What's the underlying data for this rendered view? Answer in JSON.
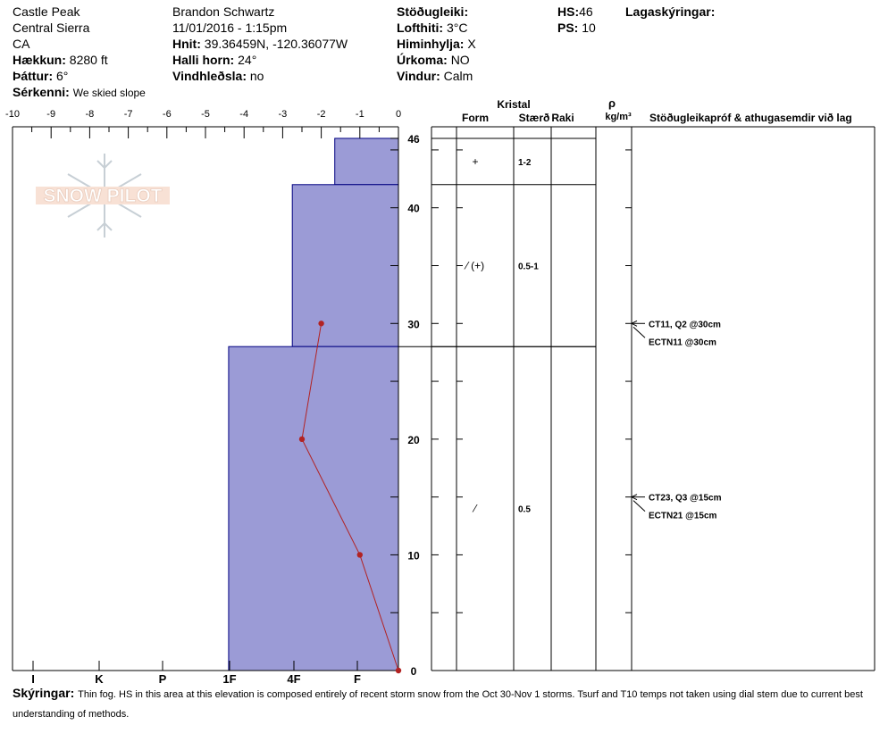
{
  "header": {
    "location": "Castle Peak",
    "range": "Central Sierra",
    "state": "CA",
    "elevation_label": "Hækkun:",
    "elevation_value": "8280 ft",
    "aspect_label": "Þáttur:",
    "aspect_value": "6°",
    "feature_label": "Sérkenni:",
    "feature_value": "We skied slope",
    "observer": "Brandon Schwartz",
    "datetime": "11/01/2016 - 1:15pm",
    "coords_label": "Hnit:",
    "coords_value": "39.36459N, -120.36077W",
    "slope_label": "Halli horn:",
    "slope_value": "24°",
    "wind_loading_label": "Vindhleðsla:",
    "wind_loading_value": "no",
    "stability_label": "Stöðugleiki:",
    "air_temp_label": "Lofthiti:",
    "air_temp_value": "3°C",
    "sky_label": "Himinhylja:",
    "sky_value": "X",
    "precip_label": "Úrkoma:",
    "precip_value": "NO",
    "wind_label": "Vindur:",
    "wind_value": "Calm",
    "hs_label": "HS:",
    "hs_value": "46",
    "ps_label": "PS:",
    "ps_value": "10",
    "layer_notes_label": "Lagaskýringar:"
  },
  "watermark": "SNOW PILOT",
  "table_headers": {
    "crystal": "Kristal",
    "form": "Form",
    "size": "Stærð",
    "moisture": "Raki",
    "rho": "ρ",
    "density_unit": "kg/m³",
    "stability_tests": "Stöðugleikapróf & athugasemdir við lag"
  },
  "chart_data": {
    "type": "snow_profile",
    "temp_axis": {
      "ticks": [
        "-10",
        "-9",
        "-8",
        "-7",
        "-6",
        "-5",
        "-4",
        "-3",
        "-2",
        "-1",
        "0"
      ],
      "range": [
        -10,
        0
      ]
    },
    "hardness_axis": {
      "ticks": [
        "I",
        "K",
        "P",
        "1F",
        "4F",
        "F"
      ]
    },
    "depth_axis": {
      "ticks": [
        "46",
        "40",
        "30",
        "20",
        "10",
        "0"
      ],
      "range": [
        0,
        46
      ]
    },
    "layers": [
      {
        "top": 46,
        "bottom": 42,
        "hardness_temp_equiv": -1.65,
        "form": "+",
        "size": "1-2"
      },
      {
        "top": 42,
        "bottom": 28,
        "hardness_temp_equiv": -2.75,
        "form": "⁄ (+)",
        "size": "0.5-1"
      },
      {
        "top": 28,
        "bottom": 0,
        "hardness_temp_equiv": -4.4,
        "form": "⁄",
        "size": "0.5"
      }
    ],
    "temperature_profile": [
      {
        "depth": 30,
        "temp": -2.0
      },
      {
        "depth": 20,
        "temp": -2.5
      },
      {
        "depth": 10,
        "temp": -1.0
      },
      {
        "depth": 0,
        "temp": 0.0
      }
    ],
    "stability_tests": [
      {
        "depth": 30,
        "lines": [
          "CT11, Q2 @30cm",
          "ECTN11 @30cm"
        ]
      },
      {
        "depth": 15,
        "lines": [
          "CT23, Q3 @15cm",
          "ECTN21 @15cm"
        ]
      }
    ],
    "colors": {
      "layer_fill": "#9b9bd6",
      "layer_stroke": "#000080",
      "temp_line": "#b22222"
    }
  },
  "comments": {
    "label": "Skýringar:",
    "text": "Thin fog. HS in this area at this elevation is composed entirely of recent storm snow from the Oct 30-Nov 1 storms. Tsurf and T10 temps not taken using dial stem due to current best understanding of methods."
  }
}
